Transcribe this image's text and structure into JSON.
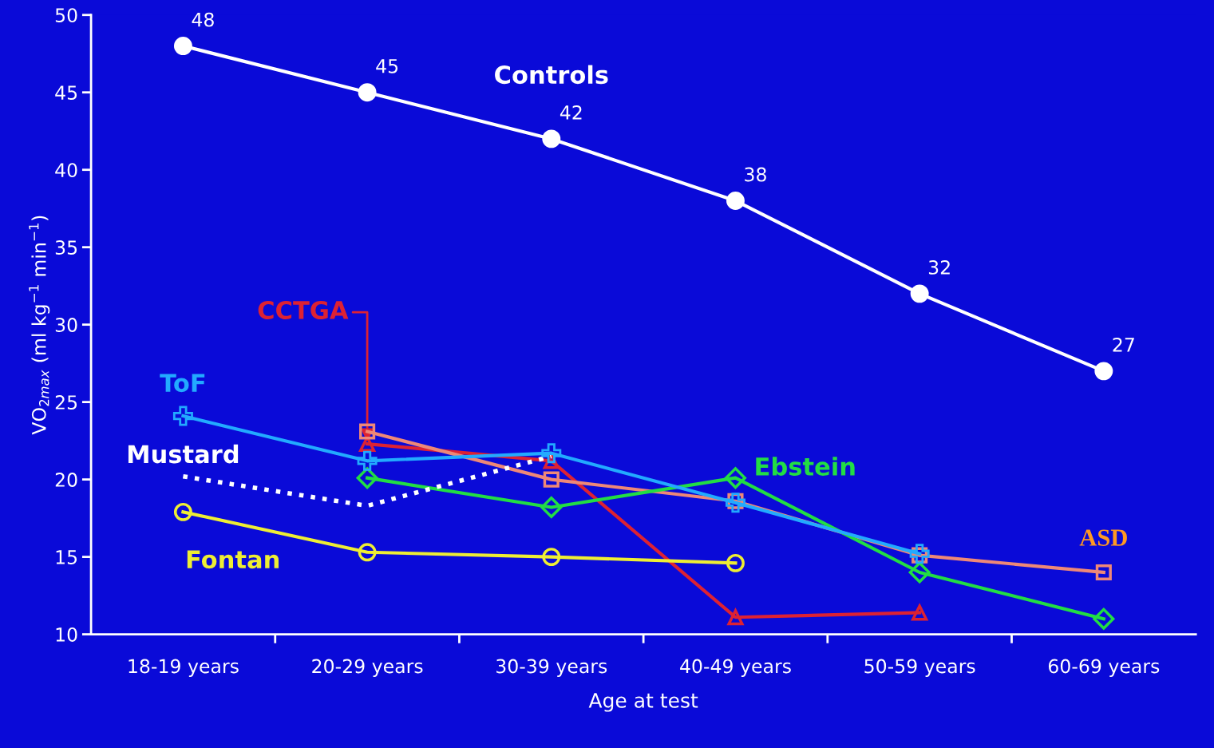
{
  "chart_data": {
    "type": "line",
    "xlabel": "Age at test",
    "ylabel": "VO$_{2max}$ (ml kg$^{−1}$ min$^{−1}$)",
    "categories": [
      "18-19 years",
      "20-29 years",
      "30-39 years",
      "40-49 years",
      "50-59 years",
      "60-69 years"
    ],
    "ylim": [
      10,
      50
    ],
    "yticks": [
      10,
      15,
      20,
      25,
      30,
      35,
      40,
      45,
      50
    ],
    "grid": false,
    "legend": false,
    "series": [
      {
        "name": "Controls",
        "color": "#ffffff",
        "marker": "circle",
        "line_style": "solid",
        "values": [
          48,
          45,
          42,
          38,
          32,
          27
        ],
        "value_labels": [
          "48",
          "45",
          "42",
          "38",
          "32",
          "27"
        ]
      },
      {
        "name": "ToF",
        "color": "#22aaff",
        "marker": "cross",
        "line_style": "solid",
        "values": [
          24.1,
          21.2,
          21.7,
          18.5,
          15.2,
          null
        ]
      },
      {
        "name": "CCTGA",
        "color": "#dd2233",
        "marker": "triangle",
        "line_style": "solid",
        "values": [
          null,
          22.3,
          21.2,
          11.1,
          11.4,
          null
        ]
      },
      {
        "name": "ASD",
        "color": "#ee8877",
        "marker": "square",
        "line_style": "solid",
        "values": [
          null,
          23.1,
          20.0,
          18.6,
          15.1,
          14.0
        ]
      },
      {
        "name": "Ebstein",
        "color": "#22dd44",
        "marker": "diamond",
        "line_style": "solid",
        "values": [
          null,
          20.1,
          18.2,
          20.1,
          14.0,
          11.0
        ]
      },
      {
        "name": "Mustard",
        "color": "#ffffff",
        "marker": "none",
        "line_style": "dotted",
        "values": [
          20.2,
          18.3,
          21.5,
          null,
          null,
          null
        ]
      },
      {
        "name": "Fontan",
        "color": "#eeee33",
        "marker": "circle",
        "line_style": "solid",
        "values": [
          17.9,
          15.3,
          15.0,
          14.6,
          null,
          null
        ]
      }
    ]
  }
}
